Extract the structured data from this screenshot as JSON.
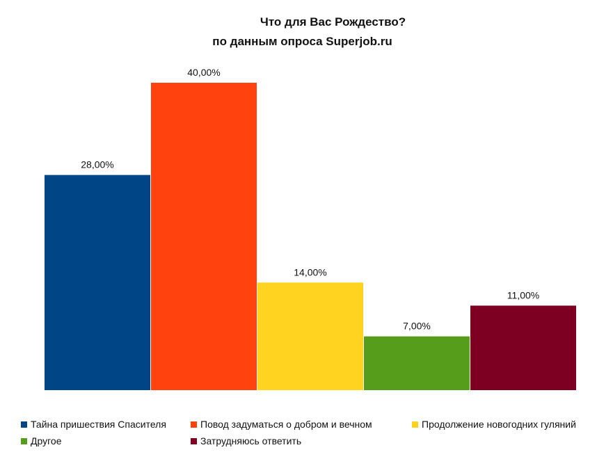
{
  "chart_data": {
    "type": "bar",
    "title": "Что для Вас Рождество?",
    "subtitle": "по данным опроса Superjob.ru",
    "categories": [
      "Тайна пришествия Спасителя",
      "Повод задуматься о добром и вечном",
      "Продолжение новогодних гуляний",
      "Другое",
      "Затрудняюсь ответить"
    ],
    "values": [
      28,
      40,
      14,
      7,
      11
    ],
    "value_labels": [
      "28,00%",
      "40,00%",
      "14,00%",
      "7,00%",
      "11,00%"
    ],
    "colors": [
      "#004586",
      "#ff420e",
      "#ffd320",
      "#579d1c",
      "#7e0021"
    ],
    "ylim": [
      0,
      40
    ],
    "xlabel": "",
    "ylabel": "",
    "grid": false,
    "legend_position": "bottom"
  }
}
